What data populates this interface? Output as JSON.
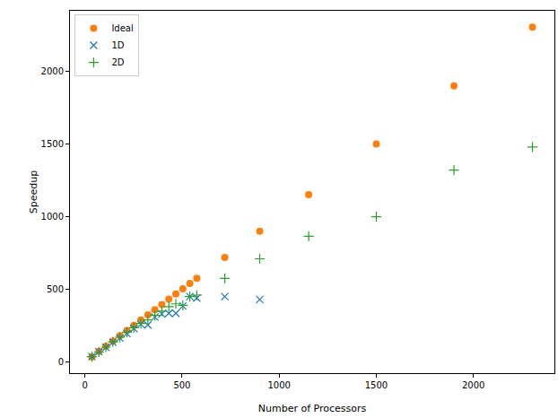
{
  "chart_data": {
    "type": "scatter",
    "x_label": "Number of Processors",
    "y_label": "Speedup",
    "xlim": [
      -77,
      2417
    ],
    "ylim": [
      -77,
      2417
    ],
    "xticks": [
      0,
      500,
      1000,
      1500,
      2000
    ],
    "yticks": [
      0,
      500,
      1000,
      1500,
      2000
    ],
    "grid": false,
    "legend": "upper left",
    "series": [
      {
        "name": "Ideal",
        "color": "#ff7f0e",
        "marker": "circle",
        "x": [
          36,
          72,
          108,
          144,
          180,
          216,
          252,
          288,
          324,
          360,
          396,
          432,
          468,
          504,
          540,
          576,
          720,
          900,
          1152,
          1500,
          1900,
          2304
        ],
        "values": [
          36,
          72,
          108,
          144,
          180,
          216,
          252,
          288,
          324,
          360,
          396,
          432,
          468,
          504,
          540,
          576,
          720,
          900,
          1152,
          1500,
          1900,
          2304
        ]
      },
      {
        "name": "1D",
        "color": "#1f77b4",
        "marker": "x",
        "x": [
          36,
          72,
          108,
          144,
          180,
          216,
          252,
          288,
          324,
          360,
          396,
          432,
          468,
          504,
          540,
          576,
          720,
          900
        ],
        "values": [
          36,
          70,
          100,
          135,
          165,
          195,
          230,
          260,
          255,
          310,
          330,
          335,
          335,
          385,
          450,
          440,
          450,
          430
        ]
      },
      {
        "name": "2D",
        "color": "#2ca02c",
        "marker": "plus",
        "x": [
          36,
          72,
          108,
          144,
          180,
          216,
          252,
          288,
          324,
          360,
          396,
          432,
          468,
          504,
          540,
          576,
          720,
          900,
          1152,
          1500,
          1900,
          2304
        ],
        "values": [
          36,
          68,
          102,
          138,
          170,
          205,
          235,
          265,
          290,
          320,
          350,
          380,
          400,
          390,
          450,
          460,
          575,
          710,
          865,
          1000,
          1320,
          1480
        ]
      }
    ]
  }
}
